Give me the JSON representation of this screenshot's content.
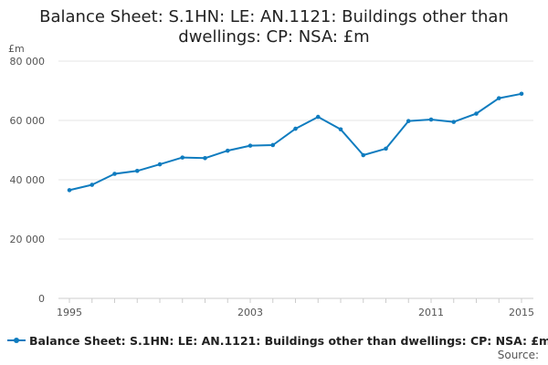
{
  "chart_data": {
    "type": "line",
    "title_lines": [
      "Balance Sheet: S.1HN: LE: AN.1121: Buildings other than",
      "dwellings: CP: NSA: £m"
    ],
    "unit_label": "£m",
    "x": [
      1995,
      1996,
      1997,
      1998,
      1999,
      2000,
      2001,
      2002,
      2003,
      2004,
      2005,
      2006,
      2007,
      2008,
      2009,
      2010,
      2011,
      2012,
      2013,
      2014,
      2015
    ],
    "x_tick_labels": [
      "1995",
      "2003",
      "2011",
      "2015"
    ],
    "x_tick_values": [
      1995,
      2003,
      2011,
      2015
    ],
    "xlim": [
      1995,
      2015
    ],
    "ylim": [
      0,
      80000
    ],
    "y_ticks": [
      0,
      20000,
      40000,
      60000,
      80000
    ],
    "y_tick_labels": [
      "0",
      "20 000",
      "40 000",
      "60 000",
      "80 000"
    ],
    "grid": true,
    "legend_position": "bottom",
    "series": [
      {
        "name": "Balance Sheet: S.1HN: LE: AN.1121: Buildings other than dwellings: CP: NSA: £m",
        "color": "#0f7cbf",
        "values": [
          36500,
          38300,
          42000,
          43000,
          45200,
          47500,
          47300,
          49800,
          51500,
          51700,
          57200,
          61200,
          57000,
          48300,
          50500,
          59800,
          60300,
          59500,
          62300,
          67500,
          69000
        ]
      }
    ]
  },
  "footer": {
    "source_label": "Source:"
  }
}
